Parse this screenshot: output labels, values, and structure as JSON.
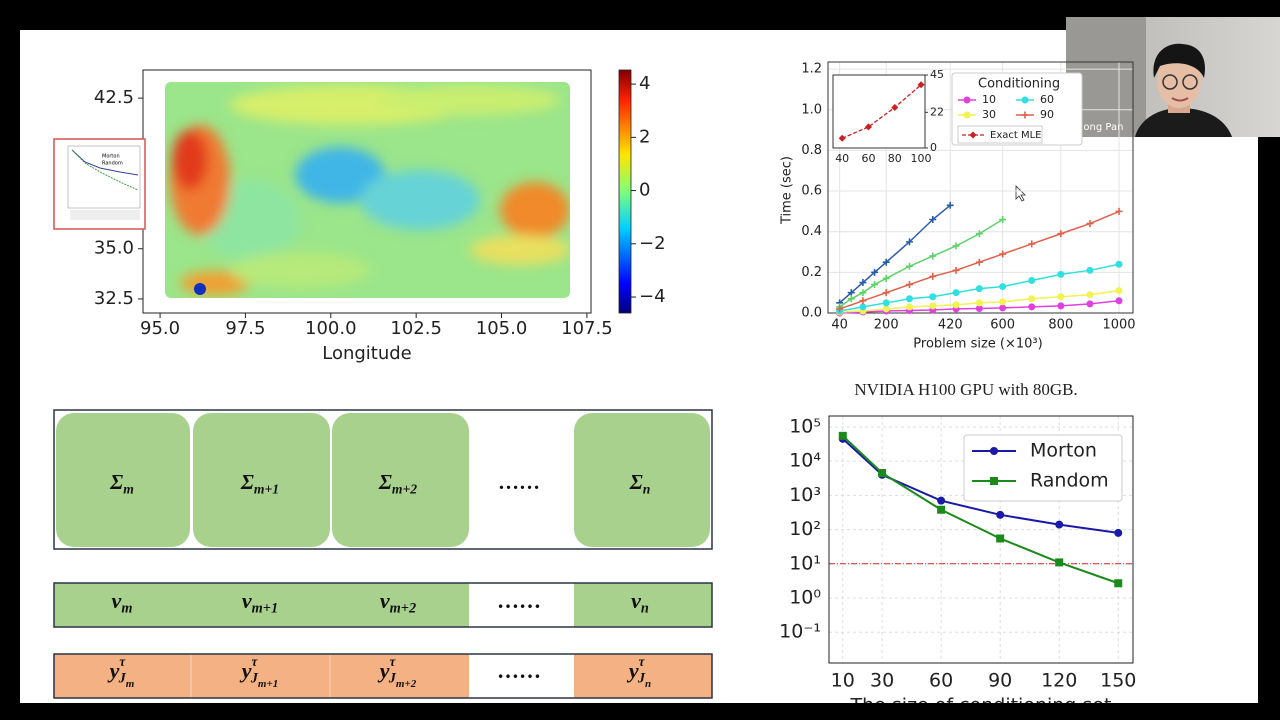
{
  "slide": {
    "caption": "NVIDIA H100 GPU with 80GB."
  },
  "participant": {
    "name": "Qilong Pan"
  },
  "thumbnail": {
    "legend": [
      "Morton",
      "Random"
    ]
  },
  "diagram": {
    "sigma_row": [
      {
        "base": "Σ",
        "sub": "m"
      },
      {
        "base": "Σ",
        "sub": "m+1"
      },
      {
        "base": "Σ",
        "sub": "m+2"
      },
      {
        "base": "……"
      },
      {
        "base": "Σ",
        "sub": "n"
      }
    ],
    "v_row": [
      {
        "base": "v",
        "sub": "m"
      },
      {
        "base": "v",
        "sub": "m+1"
      },
      {
        "base": "v",
        "sub": "m+2"
      },
      {
        "base": "……"
      },
      {
        "base": "v",
        "sub": "n"
      }
    ],
    "y_row": [
      {
        "base": "y",
        "sup": "τ",
        "sub": "J",
        "subsub": "m"
      },
      {
        "base": "y",
        "sup": "τ",
        "sub": "J",
        "subsub": "m+1"
      },
      {
        "base": "y",
        "sup": "τ",
        "sub": "J",
        "subsub": "m+2"
      },
      {
        "base": "……"
      },
      {
        "base": "y",
        "sup": "τ",
        "sub": "J",
        "subsub": "n"
      }
    ]
  },
  "chart_data": [
    {
      "type": "heatmap",
      "xlabel": "Longitude",
      "xlim": [
        94.5,
        107.62
      ],
      "xticks": [
        {
          "value": 95,
          "label": "95.0"
        },
        97.5,
        {
          "value": 100,
          "label": "100.0"
        },
        102.5,
        {
          "value": 105,
          "label": "105.0"
        },
        107.5
      ],
      "ylim": [
        31.8,
        43.9
      ],
      "yticks": [
        32.5,
        {
          "value": 35,
          "label": "35.0"
        },
        42.5
      ],
      "colorbar": {
        "lim": [
          -4.6,
          4.53
        ],
        "ticks": [
          {
            "value": -4,
            "label": "−4"
          },
          {
            "value": -2,
            "label": "−2"
          },
          0,
          2,
          4
        ]
      }
    },
    {
      "type": "line",
      "xlabel": "Problem size (×10³)",
      "ylabel": "Time (sec)",
      "xlim": [
        0,
        1048
      ],
      "xticks": [
        40,
        200,
        420,
        600,
        800,
        1000
      ],
      "ylim": [
        0,
        1.235
      ],
      "yticks": [
        {
          "value": 0,
          "label": "0.0"
        },
        0.2,
        0.4,
        0.6,
        0.8,
        {
          "value": 1,
          "label": "1.0"
        },
        1.2
      ],
      "grid": true,
      "legend_title": "Conditioning",
      "series": [
        {
          "color": "#2a5caa",
          "marker": "plus",
          "x": [
            40,
            80,
            120,
            160,
            200,
            280,
            360,
            420
          ],
          "values": [
            0.05,
            0.1,
            0.15,
            0.2,
            0.25,
            0.35,
            0.46,
            0.53
          ]
        },
        {
          "color": "#5ed36a",
          "marker": "plus",
          "x": [
            40,
            80,
            120,
            160,
            200,
            280,
            360,
            440,
            520,
            600
          ],
          "values": [
            0.03,
            0.07,
            0.1,
            0.14,
            0.17,
            0.23,
            0.28,
            0.33,
            0.39,
            0.46
          ]
        },
        {
          "name": "10",
          "color": "#e040e0",
          "marker": "circle",
          "x": [
            40,
            120,
            200,
            280,
            360,
            440,
            520,
            600,
            700,
            800,
            900,
            1000
          ],
          "values": [
            0,
            0.005,
            0.01,
            0.012,
            0.015,
            0.02,
            0.022,
            0.025,
            0.03,
            0.035,
            0.045,
            0.06
          ]
        },
        {
          "name": "30",
          "color": "#f2f250",
          "marker": "circle",
          "x": [
            40,
            120,
            200,
            280,
            360,
            440,
            520,
            600,
            700,
            800,
            900,
            1000
          ],
          "values": [
            0.005,
            0.01,
            0.02,
            0.03,
            0.035,
            0.04,
            0.05,
            0.055,
            0.07,
            0.08,
            0.09,
            0.11
          ]
        },
        {
          "name": "60",
          "color": "#30e0e0",
          "marker": "circle",
          "x": [
            40,
            120,
            200,
            280,
            360,
            440,
            520,
            600,
            700,
            800,
            900,
            1000
          ],
          "values": [
            0.01,
            0.03,
            0.05,
            0.07,
            0.08,
            0.1,
            0.12,
            0.13,
            0.16,
            0.19,
            0.21,
            0.24
          ]
        },
        {
          "name": "90",
          "color": "#e0604a",
          "marker": "plus",
          "x": [
            40,
            120,
            200,
            280,
            360,
            440,
            520,
            600,
            700,
            800,
            900,
            1000
          ],
          "values": [
            0.02,
            0.06,
            0.1,
            0.14,
            0.18,
            0.21,
            0.25,
            0.29,
            0.34,
            0.39,
            0.44,
            0.5
          ]
        }
      ],
      "inset": {
        "xlim": [
          33,
          103
        ],
        "xticks": [
          40,
          60,
          80,
          100
        ],
        "ylim": [
          0,
          45
        ],
        "yticks": [
          0,
          22,
          45
        ],
        "series": [
          {
            "name": "Exact MLE",
            "color": "#cc1f1f",
            "marker": "diamond",
            "x": [
              40,
              60,
              80,
              100
            ],
            "values": [
              6,
              13,
              25,
              39
            ]
          }
        ]
      }
    },
    {
      "type": "line",
      "log_y": true,
      "xlabel": "The size of conditioning set",
      "x": [
        10,
        30,
        60,
        90,
        120,
        150
      ],
      "xlim": [
        3,
        157.5
      ],
      "xticks": [
        10,
        30,
        60,
        90,
        120,
        150
      ],
      "ylim": [
        0.0126,
        209000
      ],
      "yticks": [
        {
          "value": 0.1,
          "label": "10⁻¹"
        },
        {
          "value": 1,
          "label": "10⁰"
        },
        {
          "value": 10,
          "label": "10¹"
        },
        {
          "value": 100,
          "label": "10²"
        },
        {
          "value": 1000,
          "label": "10³"
        },
        {
          "value": 10000,
          "label": "10⁴"
        },
        {
          "value": 100000,
          "label": "10⁵"
        }
      ],
      "grid": true,
      "hline": {
        "value": 10,
        "color": "#d62728"
      },
      "series": [
        {
          "name": "Morton",
          "color": "#1a1aa8",
          "marker": "circle",
          "values": [
            45000,
            4000,
            700,
            270,
            140,
            80
          ]
        },
        {
          "name": "Random",
          "color": "#1a8a1a",
          "marker": "square",
          "values": [
            55000,
            4500,
            380,
            55,
            11,
            2.7
          ]
        }
      ]
    }
  ]
}
